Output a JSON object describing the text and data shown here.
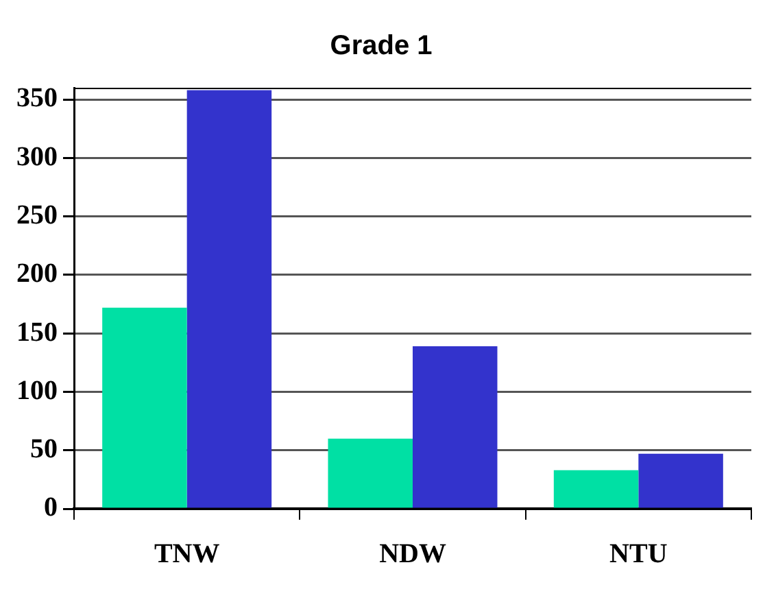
{
  "chart_data": {
    "type": "bar",
    "title": "Grade 1",
    "categories": [
      "TNW",
      "NDW",
      "NTU"
    ],
    "series": [
      {
        "color": "#00e0a4",
        "values": [
          172,
          60,
          33
        ]
      },
      {
        "color": "#3333cc",
        "values": [
          358,
          139,
          47
        ]
      }
    ],
    "ylim": [
      0,
      360
    ],
    "yticks": [
      0,
      50,
      100,
      150,
      200,
      250,
      300,
      350
    ],
    "grid": "y",
    "legend": false
  }
}
